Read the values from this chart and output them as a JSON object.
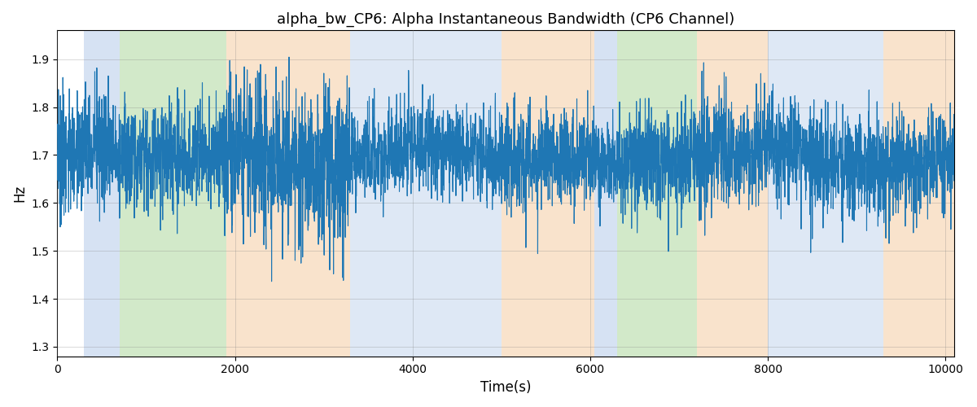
{
  "title": "alpha_bw_CP6: Alpha Instantaneous Bandwidth (CP6 Channel)",
  "xlabel": "Time(s)",
  "ylabel": "Hz",
  "xlim": [
    0,
    10100
  ],
  "ylim": [
    1.28,
    1.96
  ],
  "yticks": [
    1.3,
    1.4,
    1.5,
    1.6,
    1.7,
    1.8,
    1.9
  ],
  "xticks": [
    0,
    2000,
    4000,
    6000,
    8000,
    10000
  ],
  "line_color": "#1f77b4",
  "line_width": 0.8,
  "bg_bands": [
    {
      "xmin": 300,
      "xmax": 700,
      "color": "#aec6e8",
      "alpha": 0.5
    },
    {
      "xmin": 700,
      "xmax": 1900,
      "color": "#90c97a",
      "alpha": 0.4
    },
    {
      "xmin": 1900,
      "xmax": 3300,
      "color": "#f5c89a",
      "alpha": 0.5
    },
    {
      "xmin": 3300,
      "xmax": 5000,
      "color": "#aec6e8",
      "alpha": 0.4
    },
    {
      "xmin": 5000,
      "xmax": 6050,
      "color": "#f5c89a",
      "alpha": 0.5
    },
    {
      "xmin": 6050,
      "xmax": 6300,
      "color": "#aec6e8",
      "alpha": 0.5
    },
    {
      "xmin": 6300,
      "xmax": 7200,
      "color": "#90c97a",
      "alpha": 0.4
    },
    {
      "xmin": 7200,
      "xmax": 8000,
      "color": "#f5c89a",
      "alpha": 0.5
    },
    {
      "xmin": 8000,
      "xmax": 9300,
      "color": "#aec6e8",
      "alpha": 0.4
    },
    {
      "xmin": 9300,
      "xmax": 10100,
      "color": "#f5c89a",
      "alpha": 0.5
    }
  ],
  "seed": 42,
  "n_points": 5000,
  "base_mean": 1.695,
  "region_amplitudes": [
    {
      "xmin": 0,
      "xmax": 300,
      "std": 0.1
    },
    {
      "xmin": 300,
      "xmax": 700,
      "std": 0.085
    },
    {
      "xmin": 700,
      "xmax": 1900,
      "std": 0.075
    },
    {
      "xmin": 1900,
      "xmax": 3300,
      "std": 0.115
    },
    {
      "xmin": 3300,
      "xmax": 5000,
      "std": 0.065
    },
    {
      "xmin": 5000,
      "xmax": 6050,
      "std": 0.075
    },
    {
      "xmin": 6050,
      "xmax": 6300,
      "std": 0.055
    },
    {
      "xmin": 6300,
      "xmax": 7200,
      "std": 0.075
    },
    {
      "xmin": 7200,
      "xmax": 8000,
      "std": 0.085
    },
    {
      "xmin": 8000,
      "xmax": 9300,
      "std": 0.075
    },
    {
      "xmin": 9300,
      "xmax": 10100,
      "std": 0.075
    }
  ]
}
